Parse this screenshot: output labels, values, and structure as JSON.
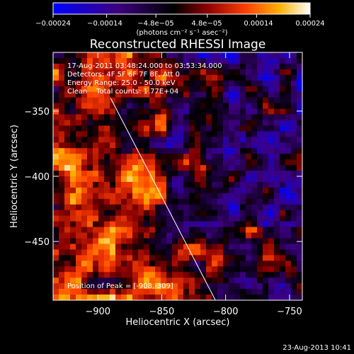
{
  "chart_data": {
    "type": "heatmap",
    "title": "Reconstructed RHESSI Image",
    "xlabel": "Heliocentric X (arcsec)",
    "ylabel": "Heliocentric Y (arcsec)",
    "xlim": [
      -935,
      -740
    ],
    "ylim": [
      -495,
      -305
    ],
    "x_ticks": [
      -900,
      -850,
      -800,
      -750
    ],
    "x_tick_labels": [
      "−900",
      "−850",
      "−800",
      "−750"
    ],
    "y_ticks": [
      -350,
      -400,
      -450
    ],
    "y_tick_labels": [
      "−350",
      "−400",
      "−450"
    ],
    "colorbar": {
      "range": [
        -0.00024,
        0.00024
      ],
      "tick_values": [
        -0.00024,
        -0.00014,
        -4.8e-05,
        4.8e-05,
        0.00014,
        0.00024
      ],
      "tick_labels": [
        "−0.00024",
        "−0.00014",
        "−4.8e−05",
        "4.8e−05",
        "0.00014",
        "0.00024"
      ],
      "units_label": "(photons cm⁻² s⁻¹ asec⁻²)",
      "colors": [
        "#0000ff",
        "#3c0080",
        "#000000",
        "#8c0000",
        "#ff4000",
        "#ffb000",
        "#ffffff"
      ]
    },
    "info_lines": [
      "17-Aug-2011 03:48:24.000 to 03:53:34.000",
      "Detectors: 4F 5F 6F 7F 8F, Att 0",
      "Energy Range: 25.0 - 50.0 keV",
      "Clean    Total counts: 1.77E+04"
    ],
    "peak_label": "Position of Peak = [-908,-309]",
    "limb_line": {
      "from": [
        -890,
        -340
      ],
      "to": [
        -808,
        -495
      ]
    }
  },
  "footer": {
    "timestamp": "23-Aug-2013 10:41"
  }
}
